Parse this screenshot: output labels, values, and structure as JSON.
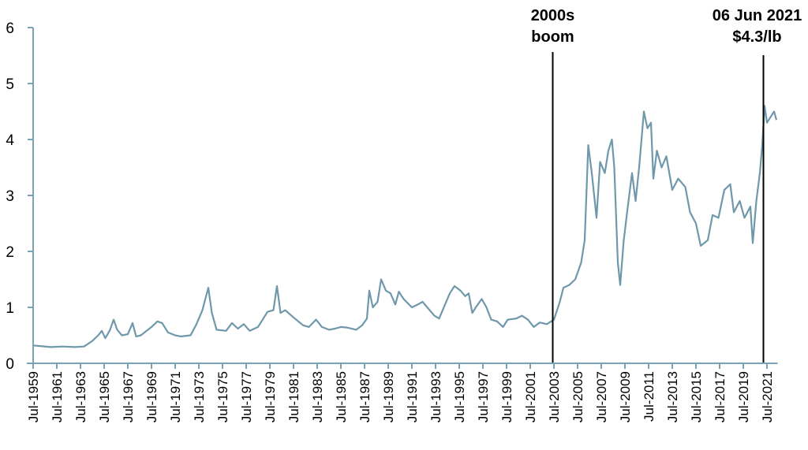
{
  "chart_data": {
    "type": "line",
    "title": "",
    "xlabel": "",
    "ylabel": "",
    "ylim": [
      0,
      6
    ],
    "xlim": [
      1959.5,
      2022.4
    ],
    "yticks": [
      0,
      1,
      2,
      3,
      4,
      5,
      6
    ],
    "xtick_labels": [
      "Jul-1959",
      "Jul-1961",
      "Jul-1963",
      "Jul-1965",
      "Jul-1967",
      "Jul-1969",
      "Jul-1971",
      "Jul-1973",
      "Jul-1975",
      "Jul-1977",
      "Jul-1979",
      "Jul-1981",
      "Jul-1983",
      "Jul-1985",
      "Jul-1987",
      "Jul-1989",
      "Jul-1991",
      "Jul-1993",
      "Jul-1995",
      "Jul-1997",
      "Jul-1999",
      "Jul-2001",
      "Jul-2003",
      "Jul-2005",
      "Jul-2007",
      "Jul-2009",
      "Jul-2011",
      "Jul-2013",
      "Jul-2015",
      "Jul-2017",
      "Jul-2019",
      "Jul-2021"
    ],
    "grid": false,
    "line_color": "#6f98ab",
    "axis_color": "#7aa3b6",
    "series": [
      {
        "x": [
          1959.5,
          1960,
          1961,
          1962,
          1963,
          1963.8,
          1964.5,
          1965,
          1965.3,
          1965.6,
          1966,
          1966.3,
          1966.6,
          1967,
          1967.5,
          1967.9,
          1968.2,
          1968.6,
          1969.5,
          1970,
          1970.4,
          1970.9,
          1971.5,
          1972,
          1972.8,
          1973.3,
          1973.8,
          1974.3,
          1974.6,
          1975,
          1975.8,
          1976.3,
          1976.8,
          1977.3,
          1977.8,
          1978.5,
          1979.3,
          1979.8,
          1980.1,
          1980.4,
          1980.8,
          1981.5,
          1982.3,
          1982.8,
          1983.4,
          1983.9,
          1984.5,
          1985,
          1985.5,
          1986,
          1986.8,
          1987.3,
          1987.7,
          1987.9,
          1988.2,
          1988.6,
          1988.9,
          1989.3,
          1989.7,
          1990.1,
          1990.4,
          1990.8,
          1991.5,
          1992,
          1992.4,
          1992.8,
          1993.4,
          1993.8,
          1994.3,
          1994.7,
          1995.1,
          1995.6,
          1996,
          1996.3,
          1996.6,
          1996.9,
          1997.4,
          1997.8,
          1998.2,
          1998.7,
          1999.2,
          1999.6,
          2000.3,
          2000.8,
          2001.3,
          2001.8,
          2002.3,
          2002.9,
          2003.5,
          2004,
          2004.3,
          2004.8,
          2005.3,
          2005.8,
          2006.1,
          2006.4,
          2006.7,
          2006.9,
          2007.1,
          2007.4,
          2007.8,
          2008.1,
          2008.4,
          2008.6,
          2008.9,
          2009.1,
          2009.4,
          2009.8,
          2010.1,
          2010.4,
          2010.7,
          2011.1,
          2011.4,
          2011.7,
          2011.9,
          2012.2,
          2012.6,
          2013,
          2013.5,
          2014,
          2014.6,
          2015,
          2015.5,
          2015.9,
          2016.5,
          2016.9,
          2017.4,
          2017.9,
          2018.4,
          2018.7,
          2019.2,
          2019.6,
          2020.1,
          2020.3,
          2020.6,
          2020.9,
          2021.1,
          2021.3,
          2021.5,
          2021.8,
          2022.1,
          2022.3
        ],
        "y": [
          0.32,
          0.31,
          0.29,
          0.3,
          0.29,
          0.3,
          0.4,
          0.5,
          0.58,
          0.45,
          0.6,
          0.78,
          0.6,
          0.5,
          0.52,
          0.72,
          0.48,
          0.5,
          0.65,
          0.75,
          0.72,
          0.55,
          0.5,
          0.48,
          0.5,
          0.7,
          0.95,
          1.35,
          0.9,
          0.6,
          0.58,
          0.72,
          0.62,
          0.7,
          0.58,
          0.65,
          0.92,
          0.95,
          1.38,
          0.9,
          0.95,
          0.82,
          0.68,
          0.65,
          0.78,
          0.65,
          0.6,
          0.62,
          0.65,
          0.64,
          0.6,
          0.68,
          0.8,
          1.3,
          1.0,
          1.1,
          1.5,
          1.3,
          1.25,
          1.05,
          1.28,
          1.15,
          1.0,
          1.05,
          1.1,
          1.0,
          0.85,
          0.8,
          1.05,
          1.25,
          1.38,
          1.3,
          1.2,
          1.25,
          0.9,
          1.0,
          1.15,
          1.0,
          0.78,
          0.75,
          0.65,
          0.78,
          0.8,
          0.85,
          0.78,
          0.65,
          0.73,
          0.7,
          0.78,
          1.1,
          1.35,
          1.4,
          1.5,
          1.8,
          2.2,
          3.9,
          3.4,
          3.0,
          2.6,
          3.6,
          3.4,
          3.8,
          4.0,
          3.5,
          1.8,
          1.4,
          2.2,
          2.9,
          3.4,
          2.9,
          3.5,
          4.5,
          4.2,
          4.3,
          3.3,
          3.8,
          3.5,
          3.7,
          3.1,
          3.3,
          3.15,
          2.7,
          2.5,
          2.1,
          2.2,
          2.65,
          2.6,
          3.1,
          3.2,
          2.7,
          2.9,
          2.6,
          2.8,
          2.15,
          2.9,
          3.4,
          3.9,
          4.6,
          4.3,
          4.4,
          4.5,
          4.35
        ]
      }
    ],
    "annotations": [
      {
        "x": 2003.4,
        "lines": [
          "2000s",
          "boom"
        ]
      },
      {
        "x": 2021.2,
        "lines": [
          "06 Jun 2021",
          "$4.3/lb"
        ]
      }
    ]
  }
}
